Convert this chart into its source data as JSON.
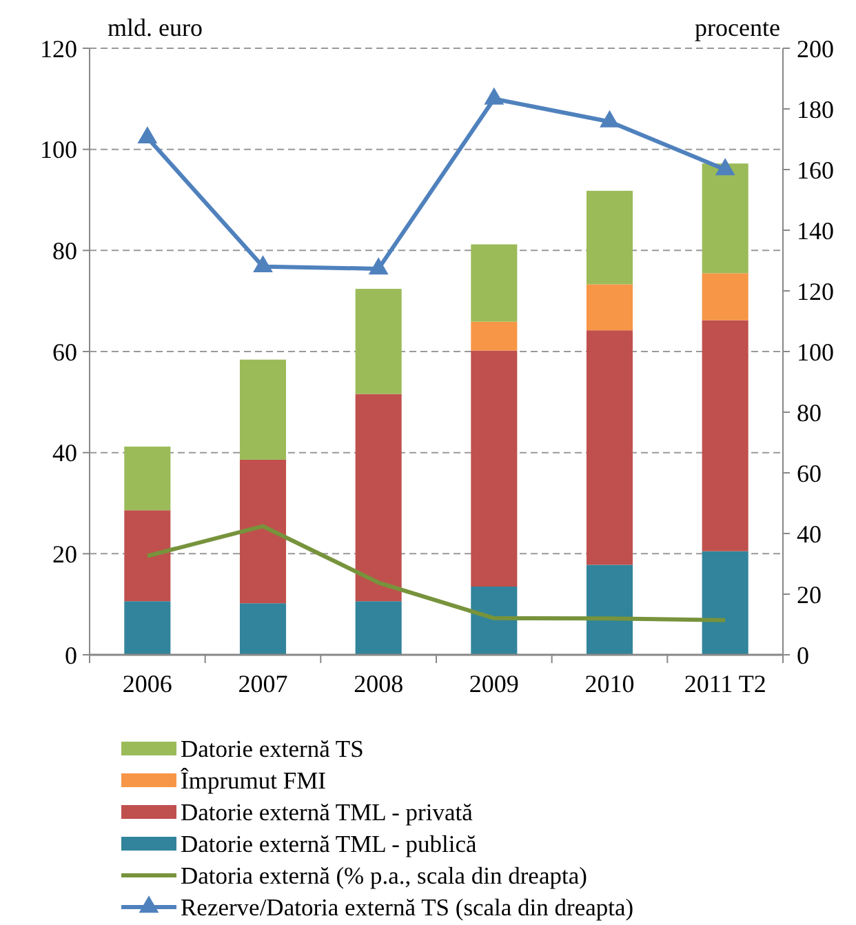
{
  "chart_data": {
    "type": "bar",
    "stacked": true,
    "ylabel": "mld. euro",
    "y2label": "procente",
    "categories": [
      "2006",
      "2007",
      "2008",
      "2009",
      "2010",
      "2011 T2"
    ],
    "ylim": [
      0,
      120
    ],
    "yticks": [
      0,
      20,
      40,
      60,
      80,
      100,
      120
    ],
    "y2lim": [
      0,
      200
    ],
    "y2ticks": [
      0,
      20,
      40,
      60,
      80,
      100,
      120,
      140,
      160,
      180,
      200
    ],
    "grid": "y",
    "legend": "bottom",
    "series": [
      {
        "name": "Datorie externă TML - publică",
        "color": "#31849b",
        "values": [
          10.6,
          10.2,
          10.6,
          13.5,
          17.8,
          20.5
        ]
      },
      {
        "name": "Datorie externă TML - privată",
        "color": "#c0504d",
        "values": [
          18.0,
          28.4,
          41.0,
          46.7,
          46.4,
          45.7
        ]
      },
      {
        "name": "Împrumut FMI",
        "color": "#f79646",
        "values": [
          0,
          0,
          0,
          5.7,
          9.1,
          9.3
        ]
      },
      {
        "name": "Datorie externă TS",
        "color": "#9bbb59",
        "values": [
          12.6,
          19.8,
          20.8,
          15.3,
          18.5,
          21.7
        ]
      },
      {
        "name": "Datoria externă  (% p.a., scala din dreapta)",
        "type": "line",
        "axis": "y2",
        "color": "#77933c",
        "marker": "none",
        "values": [
          32.6,
          42.4,
          23.8,
          12.1,
          12.0,
          11.4
        ]
      },
      {
        "name": "Rezerve/Datoria externă TS (scala din dreapta)",
        "type": "line",
        "axis": "y2",
        "color": "#4f81bd",
        "marker": "triangle",
        "values": [
          170.5,
          128,
          127.3,
          183.3,
          175.8,
          160
        ]
      }
    ]
  }
}
